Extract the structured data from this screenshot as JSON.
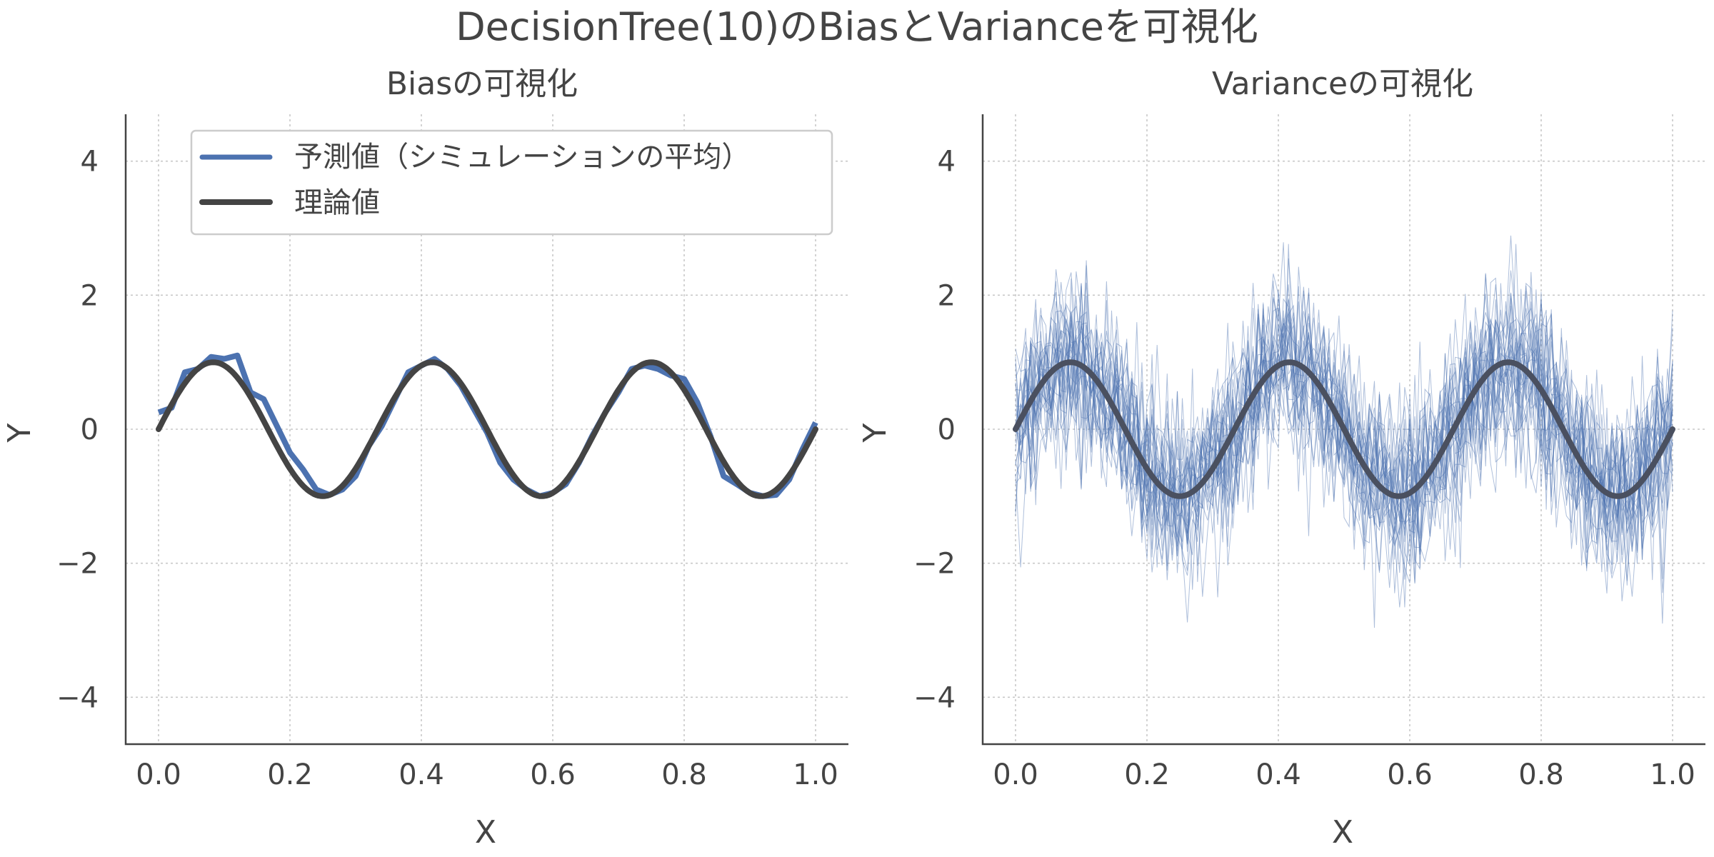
{
  "figure": {
    "title": "DecisionTree(10)のBiasとVarianceを可視化"
  },
  "chart_data": [
    {
      "type": "line",
      "title": "Biasの可視化",
      "xlabel": "X",
      "ylabel": "Y",
      "xlim": [
        -0.05,
        1.05
      ],
      "ylim": [
        -4.7,
        4.7
      ],
      "xticks": [
        "0.0",
        "0.2",
        "0.4",
        "0.6",
        "0.8",
        "1.0"
      ],
      "yticks": [
        "−4",
        "−2",
        "0",
        "2",
        "4"
      ],
      "grid": true,
      "legend": {
        "placement": "upper-center",
        "entries": [
          "予測値（シミュレーションの平均）",
          "理論値"
        ]
      },
      "series": [
        {
          "name": "予測値（シミュレーションの平均）",
          "color": "#4C72B0",
          "x": [
            0.0,
            0.02,
            0.04,
            0.06,
            0.08,
            0.1,
            0.12,
            0.14,
            0.16,
            0.18,
            0.2,
            0.22,
            0.24,
            0.26,
            0.28,
            0.3,
            0.32,
            0.34,
            0.36,
            0.38,
            0.4,
            0.42,
            0.44,
            0.46,
            0.48,
            0.5,
            0.52,
            0.54,
            0.56,
            0.58,
            0.6,
            0.62,
            0.64,
            0.66,
            0.68,
            0.7,
            0.72,
            0.74,
            0.76,
            0.78,
            0.8,
            0.82,
            0.84,
            0.86,
            0.88,
            0.9,
            0.92,
            0.94,
            0.96,
            0.98,
            1.0
          ],
          "y": [
            0.25,
            0.32,
            0.85,
            0.9,
            1.08,
            1.05,
            1.1,
            0.55,
            0.45,
            0.05,
            -0.35,
            -0.6,
            -0.9,
            -0.98,
            -0.9,
            -0.7,
            -0.25,
            0.05,
            0.45,
            0.85,
            0.95,
            1.05,
            0.9,
            0.65,
            0.3,
            -0.05,
            -0.5,
            -0.75,
            -0.9,
            -1.0,
            -0.95,
            -0.82,
            -0.5,
            -0.1,
            0.25,
            0.55,
            0.9,
            0.95,
            0.9,
            0.8,
            0.75,
            0.4,
            -0.1,
            -0.7,
            -0.82,
            -0.95,
            -1.0,
            -0.98,
            -0.75,
            -0.3,
            0.1
          ]
        },
        {
          "name": "理論値",
          "color": "#444444",
          "function": "sin(3*2*pi*x)",
          "x_range": [
            0,
            1
          ]
        }
      ]
    },
    {
      "type": "line",
      "title": "Varianceの可視化",
      "xlabel": "X",
      "ylabel": "Y",
      "xlim": [
        -0.05,
        1.05
      ],
      "ylim": [
        -4.7,
        4.7
      ],
      "xticks": [
        "0.0",
        "0.2",
        "0.4",
        "0.6",
        "0.8",
        "1.0"
      ],
      "yticks": [
        "−4",
        "−2",
        "0",
        "2",
        "4"
      ],
      "grid": true,
      "simulations": {
        "count": 30,
        "color": "#4C72B0",
        "noise_std": 0.65
      },
      "series": [
        {
          "name": "理論値",
          "color": "#4a5060",
          "function": "sin(3*2*pi*x)",
          "x_range": [
            0,
            1
          ]
        }
      ]
    }
  ]
}
